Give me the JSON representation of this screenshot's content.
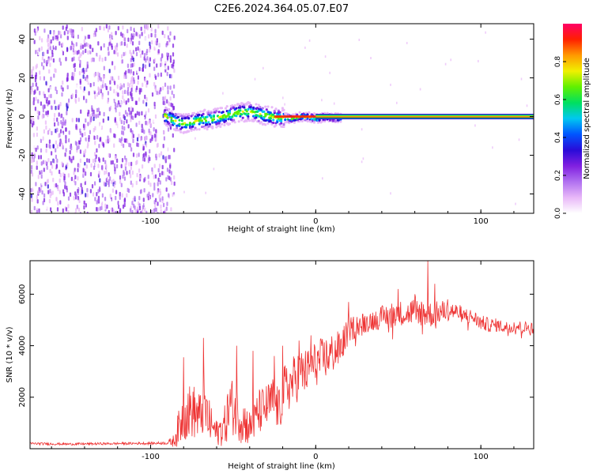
{
  "title": "C2E6.2024.364.05.07.E07",
  "colors": {
    "line": "#ee3333",
    "axis": "#000000",
    "colormap": [
      "#ffffff",
      "#e8b8f8",
      "#b070f0",
      "#8020e0",
      "#2a0bd8",
      "#0055ff",
      "#00c8f0",
      "#00e060",
      "#60f000",
      "#f0f000",
      "#ff9a00",
      "#ff2000",
      "#ff0066"
    ]
  },
  "chart_data": [
    {
      "type": "heatmap",
      "xlabel": "Height of straight line (km)",
      "ylabel": "Frequency (Hz)",
      "xlim": [
        -173,
        132
      ],
      "ylim": [
        -50,
        48
      ],
      "x_ticks": [
        -100,
        0,
        100
      ],
      "x_tick_labels": [
        "-100",
        "0",
        "100"
      ],
      "y_ticks": [
        -40,
        -20,
        0,
        20,
        40
      ],
      "y_tick_labels": [
        "-40",
        "-20",
        "0",
        "20",
        "40"
      ],
      "grid": false,
      "colorbar": {
        "label": "Normalized spectral amplitude",
        "range": [
          0,
          1
        ],
        "ticks": [
          0.0,
          0.2,
          0.4,
          0.6,
          0.8
        ],
        "tick_labels": [
          "0.0",
          "0.2",
          "0.4",
          "0.6",
          "0.8"
        ]
      },
      "regions": [
        {
          "x": [
            -173,
            -86
          ],
          "frequency": [
            -50,
            48
          ],
          "amplitude": 0.1
        },
        {
          "x": [
            -92,
            -20
          ],
          "frequency": [
            -5,
            6
          ],
          "amplitude": 0.45
        },
        {
          "x": [
            -20,
            15
          ],
          "frequency": [
            -2,
            2
          ],
          "amplitude": 0.85
        },
        {
          "x": [
            0,
            132
          ],
          "frequency": [
            -1,
            1
          ],
          "amplitude": 1.0
        }
      ],
      "ridge": {
        "x": [
          -92,
          -85,
          -80,
          -75,
          -70,
          -65,
          -60,
          -55,
          -50,
          -45,
          -40,
          -35,
          -30,
          -25,
          -20,
          -15,
          -10,
          -5,
          0,
          5,
          10,
          15,
          20,
          40,
          60,
          80,
          100,
          120,
          132
        ],
        "frequency": [
          1,
          -2,
          -3,
          -2,
          -1,
          -1,
          0,
          1,
          2,
          3,
          3,
          2,
          1,
          0,
          0,
          -0.5,
          0.5,
          0.5,
          -0.5,
          0.5,
          0,
          0,
          0,
          0,
          0,
          0,
          0,
          0,
          0
        ]
      }
    },
    {
      "type": "line",
      "xlabel": "Height of straight line (km)",
      "ylabel": "SNR (10 * v/v)",
      "xlim": [
        -173,
        132
      ],
      "ylim": [
        0,
        7300
      ],
      "x_ticks": [
        -100,
        0,
        100
      ],
      "x_tick_labels": [
        "-100",
        "0",
        "100"
      ],
      "y_ticks": [
        2000,
        4000,
        6000
      ],
      "y_tick_labels": [
        "2000",
        "4000",
        "6000"
      ],
      "grid": false,
      "series": [
        {
          "x": [
            -173,
            -150,
            -120,
            -100,
            -90,
            -86,
            -83,
            -80,
            -75,
            -70,
            -68,
            -65,
            -60,
            -55,
            -52,
            -50,
            -45,
            -40,
            -38,
            -35,
            -30,
            -25,
            -22,
            -20,
            -15,
            -10,
            -5,
            0,
            5,
            10,
            15,
            20,
            25,
            30,
            35,
            40,
            45,
            50,
            55,
            60,
            65,
            70,
            75,
            80,
            85,
            90,
            95,
            100,
            105,
            110,
            115,
            120,
            125,
            132
          ],
          "values": [
            200,
            180,
            200,
            210,
            220,
            300,
            800,
            1300,
            1500,
            1200,
            1800,
            1100,
            600,
            900,
            1700,
            1600,
            1200,
            800,
            900,
            1400,
            1600,
            1900,
            1400,
            2200,
            2500,
            2900,
            3000,
            3300,
            3500,
            3700,
            3900,
            4600,
            4800,
            4900,
            5000,
            5100,
            5200,
            5300,
            5200,
            5400,
            5300,
            5200,
            5300,
            5400,
            5300,
            5200,
            5100,
            4900,
            4800,
            4800,
            4700,
            4800,
            4700,
            4700
          ],
          "noise": [
            50,
            45,
            45,
            50,
            55,
            250,
            700,
            1000,
            1100,
            1000,
            1300,
            900,
            500,
            800,
            1200,
            1100,
            1000,
            700,
            700,
            900,
            900,
            1000,
            900,
            1000,
            1000,
            1000,
            900,
            900,
            850,
            800,
            700,
            500,
            450,
            400,
            420,
            450,
            500,
            500,
            450,
            600,
            550,
            500,
            450,
            400,
            350,
            320,
            300,
            300,
            280,
            260,
            250,
            250,
            250,
            250
          ],
          "spikes": [
            [
              -68,
              4300
            ],
            [
              -80,
              3550
            ],
            [
              -48,
              4000
            ],
            [
              -38,
              3800
            ],
            [
              -25,
              3600
            ],
            [
              -20,
              4000
            ],
            [
              -10,
              4200
            ],
            [
              -3,
              4400
            ],
            [
              20,
              5700
            ],
            [
              50,
              6200
            ],
            [
              60,
              6000
            ],
            [
              68,
              7300
            ],
            [
              72,
              6400
            ],
            [
              80,
              5800
            ]
          ]
        }
      ]
    }
  ]
}
